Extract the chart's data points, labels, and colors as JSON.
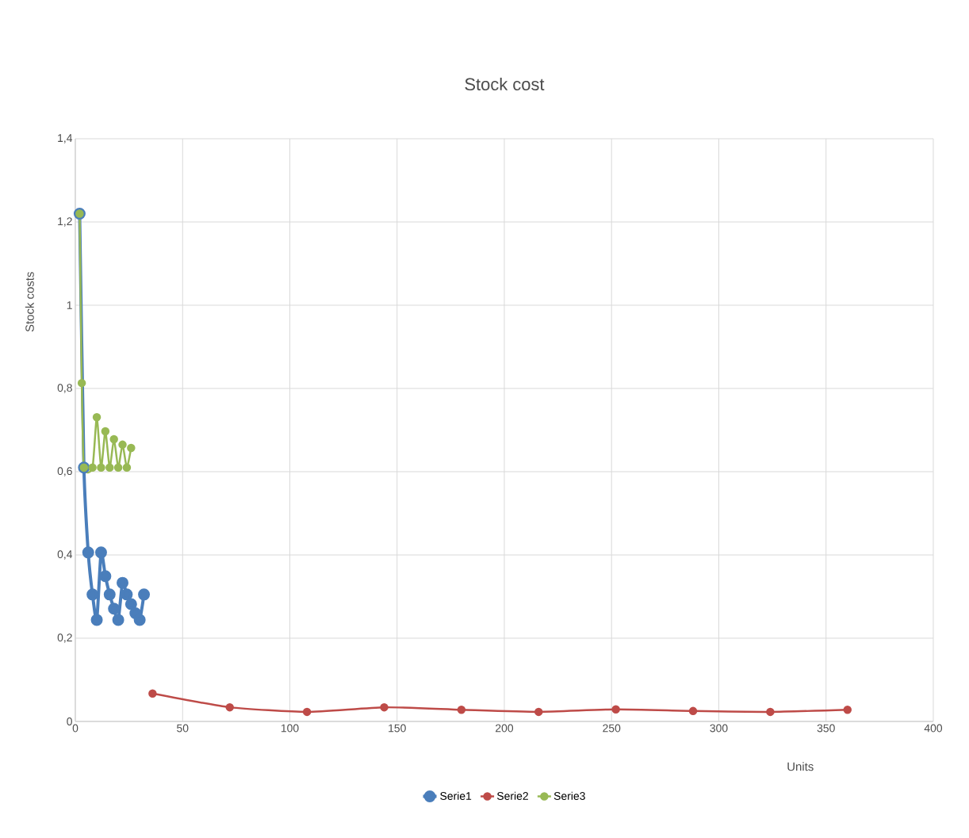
{
  "chart_data": {
    "type": "line",
    "title": "Stock cost",
    "xlabel": "Units",
    "ylabel": "Stock costs",
    "xlim": [
      0,
      400
    ],
    "xticks": [
      0,
      50,
      100,
      150,
      200,
      250,
      300,
      350,
      400
    ],
    "ylim": [
      0,
      1.4
    ],
    "yticks": [
      0,
      {
        "value": 0.2,
        "label": "0,2"
      },
      {
        "value": 0.4,
        "label": "0,4"
      },
      {
        "value": 0.6,
        "label": "0,6"
      },
      {
        "value": 0.8,
        "label": "0,8"
      },
      1,
      {
        "value": 1.2,
        "label": "1,2"
      },
      {
        "value": 1.4,
        "label": "1,4"
      }
    ],
    "grid": true,
    "legend": "bottom",
    "marker": "circle",
    "line_style": "solid",
    "series": [
      {
        "name": "Serie1",
        "color": "#4a7ebb",
        "x": [
          2,
          4,
          6,
          8,
          10,
          12,
          14,
          16,
          18,
          20,
          22,
          24,
          26,
          28,
          30,
          32
        ],
        "values": [
          1.22,
          0.61,
          0.406,
          0.305,
          0.244,
          0.406,
          0.349,
          0.305,
          0.271,
          0.244,
          0.333,
          0.305,
          0.282,
          0.26,
          0.244,
          0.305
        ]
      },
      {
        "name": "Serie2",
        "color": "#be4b48",
        "x": [
          36,
          72,
          108,
          144,
          180,
          216,
          252,
          288,
          324,
          360
        ],
        "values": [
          0.067,
          0.034,
          0.023,
          0.034,
          0.028,
          0.023,
          0.029,
          0.025,
          0.023,
          0.028
        ]
      },
      {
        "name": "Serie3",
        "color": "#98b954",
        "x": [
          2,
          3,
          4,
          8,
          10,
          12,
          14,
          16,
          18,
          20,
          22,
          24,
          26
        ],
        "values": [
          1.22,
          0.813,
          0.61,
          0.61,
          0.731,
          0.61,
          0.697,
          0.61,
          0.678,
          0.61,
          0.665,
          0.61,
          0.657
        ]
      }
    ]
  }
}
